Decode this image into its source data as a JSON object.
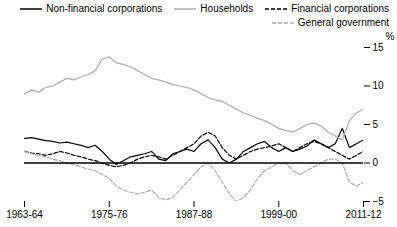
{
  "chart_data": {
    "type": "line",
    "x": [
      1963,
      1964,
      1965,
      1966,
      1967,
      1968,
      1969,
      1970,
      1971,
      1972,
      1973,
      1974,
      1975,
      1976,
      1977,
      1978,
      1979,
      1980,
      1981,
      1982,
      1983,
      1984,
      1985,
      1986,
      1987,
      1988,
      1989,
      1990,
      1991,
      1992,
      1993,
      1994,
      1995,
      1996,
      1997,
      1998,
      1999,
      2000,
      2001,
      2002,
      2003,
      2004,
      2005,
      2006,
      2007,
      2008,
      2009,
      2010,
      2011
    ],
    "series": [
      {
        "name": "Non-financial corporations",
        "color": "#000000",
        "line_style": "solid",
        "values": [
          3.2,
          3.3,
          3.1,
          2.9,
          2.8,
          2.6,
          2.7,
          2.5,
          2.3,
          2.0,
          2.3,
          1.5,
          0.5,
          -0.2,
          0.3,
          0.8,
          1.0,
          1.2,
          1.5,
          0.5,
          0.3,
          1.2,
          1.5,
          1.8,
          1.5,
          2.5,
          3.0,
          2.0,
          0.5,
          0.0,
          0.5,
          1.5,
          2.0,
          2.5,
          2.8,
          2.0,
          1.5,
          2.0,
          1.5,
          1.8,
          2.2,
          3.0,
          2.5,
          2.0,
          2.5,
          4.5,
          2.0,
          2.5,
          3.0
        ]
      },
      {
        "name": "Households",
        "color": "#aaaaaa",
        "line_style": "solid",
        "values": [
          9.0,
          9.5,
          9.2,
          9.8,
          10.0,
          10.5,
          11.0,
          10.8,
          11.2,
          11.5,
          12.0,
          13.5,
          13.8,
          13.0,
          12.8,
          12.5,
          12.0,
          11.5,
          11.0,
          10.8,
          10.5,
          10.2,
          10.0,
          9.8,
          9.5,
          9.0,
          8.5,
          8.2,
          8.0,
          7.5,
          7.0,
          6.5,
          6.2,
          5.8,
          5.5,
          5.0,
          4.5,
          4.2,
          4.0,
          4.5,
          5.0,
          5.2,
          4.8,
          4.0,
          3.5,
          3.0,
          5.5,
          6.5,
          7.0
        ]
      },
      {
        "name": "Financial corporations",
        "color": "#000000",
        "line_style": "dashed",
        "values": [
          1.5,
          1.3,
          1.2,
          1.0,
          1.2,
          1.5,
          1.3,
          1.0,
          0.8,
          0.5,
          0.3,
          0.0,
          -0.3,
          -0.5,
          -0.3,
          0.0,
          0.5,
          0.8,
          1.0,
          0.8,
          0.5,
          1.0,
          1.5,
          2.0,
          2.5,
          3.5,
          4.0,
          3.5,
          2.0,
          1.0,
          0.5,
          1.0,
          1.5,
          1.8,
          2.0,
          2.2,
          2.5,
          2.0,
          1.5,
          2.0,
          2.5,
          2.8,
          2.5,
          2.0,
          1.5,
          1.0,
          0.5,
          1.0,
          1.5
        ]
      },
      {
        "name": "General government",
        "color": "#aaaaaa",
        "line_style": "dashed",
        "values": [
          1.5,
          1.2,
          1.0,
          0.8,
          0.5,
          0.3,
          0.0,
          -0.2,
          -0.5,
          -0.8,
          -1.0,
          -1.5,
          -2.0,
          -3.0,
          -3.5,
          -3.8,
          -4.0,
          -3.8,
          -3.5,
          -4.5,
          -4.8,
          -4.5,
          -3.5,
          -2.5,
          -1.5,
          -0.5,
          0.0,
          -1.0,
          -2.5,
          -4.0,
          -5.0,
          -4.5,
          -3.5,
          -2.0,
          -1.0,
          -0.5,
          0.0,
          0.0,
          -1.0,
          -1.5,
          -1.0,
          -0.5,
          0.0,
          0.5,
          0.5,
          0.0,
          -2.5,
          -3.0,
          -2.5
        ]
      }
    ],
    "xlim": [
      1963,
      2011
    ],
    "xticks": [
      {
        "value": 1963,
        "label": "1963-64"
      },
      {
        "value": 1975,
        "label": "1975-76"
      },
      {
        "value": 1987,
        "label": "1987-88"
      },
      {
        "value": 1999,
        "label": "1999-00"
      },
      {
        "value": 2011,
        "label": "2011-12"
      }
    ],
    "ylim": [
      -5,
      15
    ],
    "yticks": [
      -5,
      0,
      5,
      10,
      15
    ],
    "ylabel": "%",
    "legend": "upper right",
    "grid": false
  }
}
